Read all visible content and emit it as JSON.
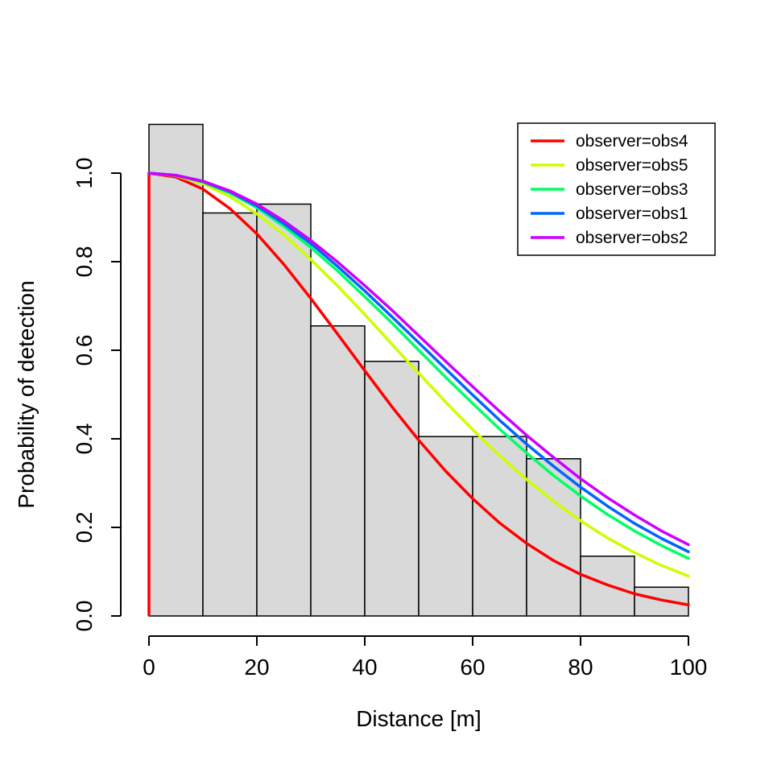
{
  "figure": {
    "background": "#FFFFFF",
    "text_color": "#000000"
  },
  "chart_data": {
    "type": "bar",
    "subtype": "histogram-with-detection-function-curves",
    "title": "",
    "xlabel": "Distance [m]",
    "ylabel": "Probability of detection",
    "xlim": [
      0,
      100
    ],
    "ylim": [
      0,
      1.0
    ],
    "grid": false,
    "x_ticks": [
      0,
      20,
      40,
      60,
      80,
      100
    ],
    "x_tick_labels": [
      "0",
      "20",
      "40",
      "60",
      "80",
      "100"
    ],
    "y_ticks": [
      0.0,
      0.2,
      0.4,
      0.6,
      0.8,
      1.0
    ],
    "y_tick_labels": [
      "0.0",
      "0.2",
      "0.4",
      "0.6",
      "0.8",
      "1.0"
    ],
    "histogram": {
      "bin_edges": [
        0,
        10,
        20,
        30,
        40,
        50,
        60,
        70,
        80,
        90,
        100
      ],
      "heights": [
        1.11,
        0.91,
        0.93,
        0.655,
        0.575,
        0.405,
        0.405,
        0.355,
        0.135,
        0.065
      ],
      "fill": "#D9D9D9",
      "stroke": "#000000"
    },
    "x": [
      0,
      5,
      10,
      15,
      20,
      25,
      30,
      35,
      40,
      45,
      50,
      55,
      60,
      65,
      70,
      75,
      80,
      85,
      90,
      95,
      100
    ],
    "series": [
      {
        "name": "observer=obs4",
        "color": "#FF0000",
        "values": [
          1.0,
          0.991,
          0.964,
          0.92,
          0.863,
          0.794,
          0.717,
          0.636,
          0.554,
          0.473,
          0.397,
          0.327,
          0.265,
          0.21,
          0.164,
          0.125,
          0.094,
          0.07,
          0.05,
          0.036,
          0.025
        ]
      },
      {
        "name": "observer=obs5",
        "color": "#CCFF00",
        "values": [
          1.0,
          0.994,
          0.976,
          0.947,
          0.908,
          0.861,
          0.805,
          0.745,
          0.681,
          0.614,
          0.548,
          0.483,
          0.421,
          0.362,
          0.308,
          0.259,
          0.215,
          0.176,
          0.143,
          0.114,
          0.09
        ]
      },
      {
        "name": "observer=obs3",
        "color": "#00FF66",
        "values": [
          1.0,
          0.995,
          0.98,
          0.955,
          0.922,
          0.88,
          0.832,
          0.779,
          0.721,
          0.662,
          0.6,
          0.539,
          0.48,
          0.422,
          0.368,
          0.317,
          0.271,
          0.229,
          0.192,
          0.159,
          0.13
        ]
      },
      {
        "name": "observer=obs1",
        "color": "#0066FF",
        "values": [
          1.0,
          0.995,
          0.981,
          0.958,
          0.926,
          0.886,
          0.841,
          0.789,
          0.734,
          0.676,
          0.617,
          0.558,
          0.499,
          0.442,
          0.388,
          0.338,
          0.291,
          0.248,
          0.209,
          0.175,
          0.145
        ]
      },
      {
        "name": "observer=obs2",
        "color": "#CC00FF",
        "values": [
          1.0,
          0.995,
          0.982,
          0.96,
          0.93,
          0.892,
          0.848,
          0.799,
          0.746,
          0.691,
          0.633,
          0.575,
          0.518,
          0.462,
          0.408,
          0.358,
          0.31,
          0.267,
          0.228,
          0.192,
          0.161
        ]
      }
    ],
    "annotations": [
      {
        "type": "vline",
        "x": 0,
        "from": 0.0,
        "to": 1.0,
        "color": "#FF0000"
      }
    ],
    "legend": {
      "position": "top-right",
      "border_color": "#000000",
      "background": "#FFFFFF",
      "entries": [
        "observer=obs4",
        "observer=obs5",
        "observer=obs3",
        "observer=obs1",
        "observer=obs2"
      ]
    }
  }
}
